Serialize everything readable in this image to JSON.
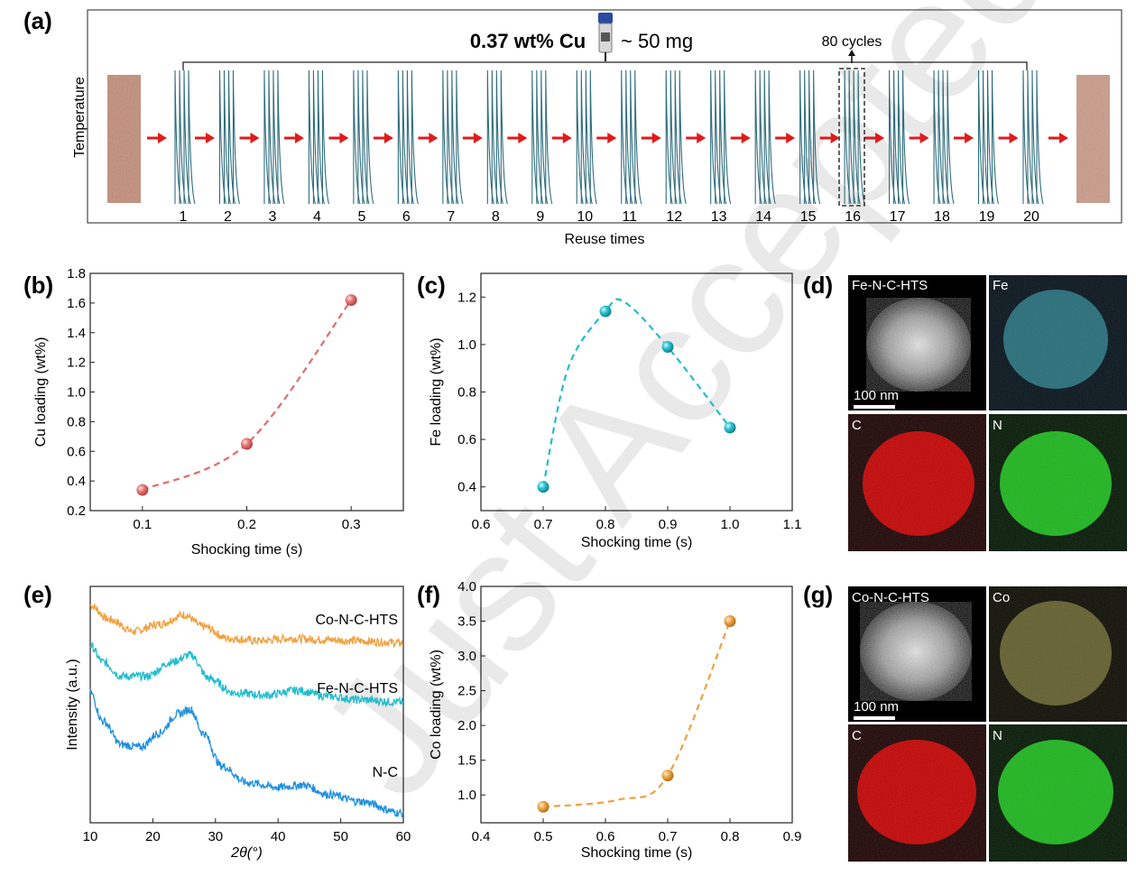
{
  "watermark": "Just Accepted",
  "colors": {
    "cu": "#e06b6b",
    "fe": "#22bccd",
    "co": "#f0a040",
    "curve": "#2f6d7d",
    "arrow": "#e01b1b"
  },
  "panel_a": {
    "label": "(a)",
    "title_bold": "0.37 wt% Cu",
    "title_rest": "~ 50 mg",
    "cycles_note": "80 cycles",
    "ylabel": "Temperature",
    "xlabel": "Reuse times",
    "ticks": [
      "1",
      "2",
      "3",
      "4",
      "5",
      "6",
      "7",
      "8",
      "9",
      "10",
      "11",
      "12",
      "13",
      "14",
      "15",
      "16",
      "17",
      "18",
      "19",
      "20"
    ]
  },
  "chart_data": [
    {
      "panel": "(b)",
      "type": "line",
      "title": "",
      "xlabel": "Shocking time (s)",
      "ylabel": "Cu loading (wt%)",
      "x": [
        0.1,
        0.2,
        0.3
      ],
      "y": [
        0.34,
        0.65,
        1.62
      ],
      "xlim": [
        0.05,
        0.35
      ],
      "ylim": [
        0.2,
        1.8
      ],
      "xticks": [
        0.1,
        0.2,
        0.3
      ],
      "yticks": [
        0.2,
        0.4,
        0.6,
        0.8,
        1.0,
        1.2,
        1.4,
        1.6,
        1.8
      ],
      "xtick_labels": [
        "0.1",
        "0.2",
        "0.3"
      ],
      "ytick_labels": [
        "0.2",
        "0.4",
        "0.6",
        "0.8",
        "1.0",
        "1.2",
        "1.4",
        "1.6",
        "1.8"
      ]
    },
    {
      "panel": "(c)",
      "type": "line",
      "title": "",
      "xlabel": "Shocking time (s)",
      "ylabel": "Fe loading (wt%)",
      "x": [
        0.7,
        0.8,
        0.9,
        1.0
      ],
      "y": [
        0.4,
        1.14,
        0.99,
        0.65
      ],
      "xlim": [
        0.6,
        1.1
      ],
      "ylim": [
        0.3,
        1.3
      ],
      "xticks": [
        0.6,
        0.7,
        0.8,
        0.9,
        1.0,
        1.1
      ],
      "yticks": [
        0.4,
        0.6,
        0.8,
        1.0,
        1.2
      ],
      "xtick_labels": [
        "0.6",
        "0.7",
        "0.8",
        "0.9",
        "1.0",
        "1.1"
      ],
      "ytick_labels": [
        "0.4",
        "0.6",
        "0.8",
        "1.0",
        "1.2"
      ]
    },
    {
      "panel": "(e)",
      "type": "line",
      "title": "",
      "xlabel": "2θ(°)",
      "ylabel": "Intensity (a.u.)",
      "xlim": [
        10,
        60
      ],
      "xticks": [
        10,
        20,
        30,
        40,
        50,
        60
      ],
      "xtick_labels": [
        "10",
        "20",
        "30",
        "40",
        "50",
        "60"
      ],
      "series": [
        {
          "name": "Co-N-C-HTS",
          "x": [
            10,
            13,
            17,
            21,
            25,
            28,
            32,
            37,
            42,
            47,
            52,
            57,
            60
          ],
          "y": [
            0.92,
            0.86,
            0.81,
            0.84,
            0.88,
            0.83,
            0.78,
            0.77,
            0.78,
            0.775,
            0.77,
            0.765,
            0.76
          ]
        },
        {
          "name": "Fe-N-C-HTS",
          "x": [
            10,
            12,
            15,
            19,
            23,
            26,
            29,
            33,
            38,
            43,
            48,
            53,
            60
          ],
          "y": [
            0.75,
            0.68,
            0.62,
            0.62,
            0.68,
            0.71,
            0.61,
            0.55,
            0.54,
            0.56,
            0.535,
            0.52,
            0.51
          ]
        },
        {
          "name": "N-C",
          "x": [
            10,
            12,
            15,
            18,
            21,
            24,
            26,
            28,
            31,
            35,
            40,
            44,
            48,
            53,
            60
          ],
          "y": [
            0.55,
            0.43,
            0.33,
            0.32,
            0.38,
            0.46,
            0.48,
            0.38,
            0.24,
            0.17,
            0.15,
            0.16,
            0.12,
            0.09,
            0.04
          ]
        }
      ]
    },
    {
      "panel": "(f)",
      "type": "line",
      "title": "",
      "xlabel": "Shocking time (s)",
      "ylabel": "Co loading (wt%)",
      "x": [
        0.5,
        0.7,
        0.8
      ],
      "y": [
        0.83,
        1.28,
        3.5
      ],
      "xlim": [
        0.4,
        0.9
      ],
      "ylim": [
        0.6,
        4.0
      ],
      "xticks": [
        0.4,
        0.5,
        0.6,
        0.7,
        0.8,
        0.9
      ],
      "yticks": [
        1.0,
        1.5,
        2.0,
        2.5,
        3.0,
        3.5,
        4.0
      ],
      "xtick_labels": [
        "0.4",
        "0.5",
        "0.6",
        "0.7",
        "0.8",
        "0.9"
      ],
      "ytick_labels": [
        "1.0",
        "1.5",
        "2.0",
        "2.5",
        "3.0",
        "3.5",
        "4.0"
      ]
    }
  ],
  "panel_d": {
    "label": "(d)",
    "tiles": [
      "Fe-N-C-HTS",
      "Fe",
      "C",
      "N"
    ],
    "scale": "100 nm"
  },
  "panel_g": {
    "label": "(g)",
    "tiles": [
      "Co-N-C-HTS",
      "Co",
      "C",
      "N"
    ],
    "scale": "100 nm"
  },
  "labels": {
    "b": "(b)",
    "c": "(c)",
    "e": "(e)",
    "f": "(f)"
  }
}
